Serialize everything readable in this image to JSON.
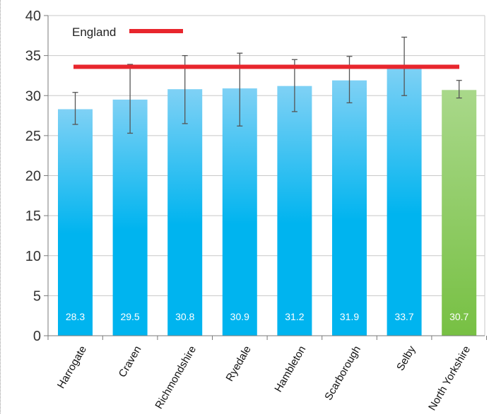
{
  "chart_data": {
    "type": "bar",
    "categories": [
      "Harrogate",
      "Craven",
      "Richmondshire",
      "Ryedale",
      "Hambleton",
      "Scarborough",
      "Selby",
      "North Yorkshire"
    ],
    "values": [
      28.3,
      29.5,
      30.8,
      30.9,
      31.2,
      31.9,
      33.7,
      30.7
    ],
    "value_labels": [
      "28.3",
      "29.5",
      "30.8",
      "30.9",
      "31.2",
      "31.9",
      "33.7",
      "30.7"
    ],
    "error_low": [
      26.4,
      25.3,
      26.5,
      26.2,
      28.0,
      29.1,
      30.0,
      29.7
    ],
    "error_high": [
      30.4,
      33.9,
      35.0,
      35.3,
      34.5,
      34.9,
      37.3,
      31.9
    ],
    "highlight_index": 7,
    "reference_line": {
      "label": "England",
      "value": 33.6,
      "color": "#e8262d"
    },
    "title": "",
    "xlabel": "",
    "ylabel": "",
    "ylim": [
      0,
      40
    ],
    "yticks": [
      0,
      5,
      10,
      15,
      20,
      25,
      30,
      35,
      40
    ],
    "grid": true,
    "legend_position": "top-left",
    "colors": {
      "bar_top": "#7fd1f5",
      "bar_bottom": "#00b4ef",
      "highlight_top": "#a9d88a",
      "highlight_bottom": "#77c043",
      "grid": "#c8c8c8",
      "axis": "#7a7a7a",
      "error_bar": "#555555",
      "value_label": "#ffffff"
    }
  }
}
